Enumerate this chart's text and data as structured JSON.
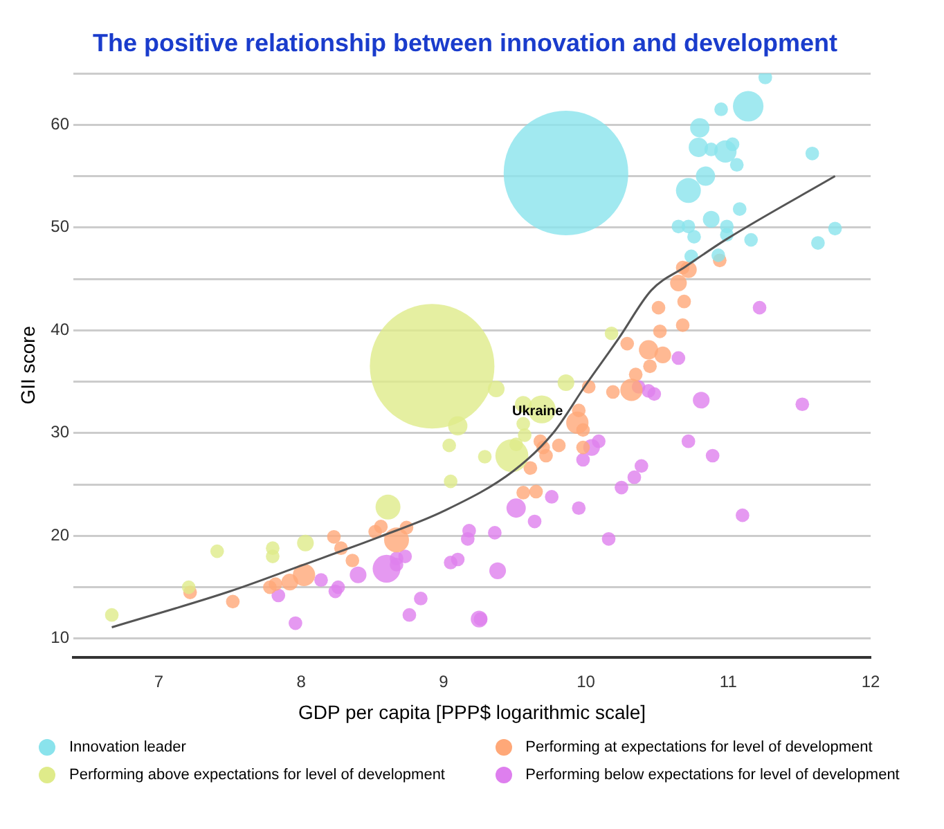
{
  "chart_data": {
    "type": "bubble",
    "title": "The positive relationship between innovation and development",
    "xlabel": "GDP per capita [PPP$ logarithmic scale]",
    "ylabel": "GII score",
    "xlim": [
      6.4,
      12
    ],
    "xticks": [
      7,
      8,
      9,
      10,
      11,
      12
    ],
    "ylim": [
      8.2,
      65
    ],
    "yticks": [
      10,
      {
        "value": 15,
        "label": null
      },
      20,
      {
        "value": 25,
        "label": null
      },
      30,
      {
        "value": 35,
        "label": null
      },
      40,
      {
        "value": 45,
        "label": null
      },
      50,
      {
        "value": 55,
        "label": null
      },
      60,
      {
        "value": 65,
        "label": null
      }
    ],
    "grid": "y",
    "legend": "bottom",
    "marker": "circle",
    "annotations": [
      {
        "text": "Ukraine",
        "x": 9.56,
        "y": 30.9
      }
    ],
    "series": [
      {
        "name": "Innovation leader",
        "color": "#8ae3ec",
        "x": [
          11.26,
          11.14,
          10.95,
          10.8,
          10.79,
          10.88,
          10.98,
          11.03,
          11.06,
          11.59,
          10.84,
          10.72,
          11.08,
          10.88,
          10.65,
          10.72,
          10.76,
          10.99,
          10.99,
          11.16,
          11.63,
          11.75,
          10.74,
          10.93,
          9.86
        ],
        "values": [
          64.6,
          61.8,
          61.5,
          59.7,
          57.8,
          57.6,
          57.4,
          58.1,
          56.1,
          57.2,
          55,
          53.6,
          51.8,
          50.8,
          50.1,
          50.1,
          49.1,
          50.1,
          49.3,
          48.8,
          48.5,
          49.9,
          47.2,
          47.3,
          55.3
        ],
        "sizes": [
          0.012,
          0.06,
          0.012,
          0.024,
          0.024,
          0.012,
          0.032,
          0.012,
          0.012,
          0.012,
          0.024,
          0.04,
          0.012,
          0.018,
          0.012,
          0.012,
          0.012,
          0.012,
          0.012,
          0.012,
          0.012,
          0.012,
          0.012,
          0.012,
          1
        ]
      },
      {
        "name": "Performing above expectations for level of development",
        "color": "#dfeb8a",
        "x": [
          8.92,
          10.18,
          9.86,
          9.37,
          9.56,
          9.57,
          9.69,
          9.56,
          9.51,
          9.48,
          9.29,
          9.1,
          9.04,
          9.05,
          8.61,
          8.03,
          7.41,
          7.8,
          7.8,
          7.21,
          6.67
        ],
        "values": [
          36.5,
          39.7,
          34.9,
          34.3,
          30.9,
          29.8,
          32.3,
          32.8,
          28.9,
          27.8,
          27.7,
          30.7,
          28.8,
          25.3,
          22.8,
          19.3,
          18.5,
          18.8,
          18,
          15,
          12.3
        ],
        "sizes": [
          1,
          0.012,
          0.018,
          0.018,
          0.012,
          0.012,
          0.05,
          0.018,
          0.012,
          0.07,
          0.012,
          0.024,
          0.012,
          0.012,
          0.04,
          0.018,
          0.012,
          0.012,
          0.012,
          0.012,
          0.012
        ]
      },
      {
        "name": "Performing at expectations for level of development",
        "color": "#ffa878",
        "x": [
          10.68,
          10.72,
          10.65,
          10.69,
          10.51,
          10.68,
          10.52,
          10.29,
          10.44,
          10.54,
          10.45,
          10.94,
          10.35,
          10.02,
          10.19,
          10.32,
          9.95,
          9.94,
          9.98,
          9.68,
          9.7,
          9.81,
          9.72,
          9.61,
          9.98,
          9.56,
          9.65,
          8.74,
          8.67,
          8.52,
          8.56,
          8.23,
          8.28,
          8.36,
          8.02,
          7.92,
          7.82,
          7.78,
          7.52,
          7.22
        ],
        "values": [
          46.1,
          45.9,
          44.6,
          42.8,
          42.2,
          40.5,
          39.9,
          38.7,
          38.1,
          37.6,
          36.5,
          46.8,
          35.7,
          34.5,
          34,
          34.2,
          32.2,
          31,
          30.3,
          29.2,
          28.6,
          28.8,
          27.8,
          26.6,
          28.6,
          24.2,
          24.3,
          20.8,
          19.6,
          20.4,
          20.9,
          19.9,
          18.8,
          17.6,
          16.2,
          15.5,
          15.3,
          15,
          13.6,
          14.5
        ],
        "sizes": [
          0.012,
          0.018,
          0.018,
          0.012,
          0.012,
          0.012,
          0.012,
          0.012,
          0.024,
          0.018,
          0.012,
          0.012,
          0.012,
          0.012,
          0.012,
          0.032,
          0.012,
          0.032,
          0.012,
          0.012,
          0.012,
          0.012,
          0.012,
          0.012,
          0.012,
          0.012,
          0.012,
          0.012,
          0.04,
          0.012,
          0.012,
          0.012,
          0.012,
          0.012,
          0.032,
          0.018,
          0.012,
          0.012,
          0.012,
          0.012
        ]
      },
      {
        "name": "Performing below expectations for level of development",
        "color": "#de7fee",
        "x": [
          11.22,
          10.65,
          10.37,
          10.44,
          10.48,
          10.81,
          11.52,
          10.09,
          10.04,
          9.98,
          10.72,
          10.89,
          10.39,
          10.34,
          10.25,
          9.76,
          9.51,
          9.95,
          9.64,
          11.1,
          9.36,
          10.16,
          9.38,
          9.26,
          9.18,
          9.17,
          9.1,
          9.05,
          8.73,
          8.67,
          8.6,
          8.67,
          8.4,
          8.14,
          8.26,
          8.24,
          7.84,
          8.84,
          8.76,
          7.96,
          9.25
        ],
        "values": [
          42.2,
          37.3,
          34.5,
          34.1,
          33.8,
          33.2,
          32.8,
          29.2,
          28.6,
          27.4,
          29.2,
          27.8,
          26.8,
          25.7,
          24.7,
          23.8,
          22.7,
          22.7,
          21.4,
          22,
          20.3,
          19.7,
          16.6,
          11.9,
          20.5,
          19.7,
          17.7,
          17.4,
          18,
          17.8,
          16.8,
          17.2,
          16.2,
          15.7,
          15,
          14.6,
          14.2,
          13.9,
          12.3,
          11.5,
          11.9
        ],
        "sizes": [
          0.012,
          0.012,
          0.012,
          0.012,
          0.012,
          0.018,
          0.012,
          0.012,
          0.018,
          0.012,
          0.012,
          0.012,
          0.012,
          0.012,
          0.012,
          0.012,
          0.024,
          0.012,
          0.012,
          0.012,
          0.012,
          0.012,
          0.018,
          0.012,
          0.012,
          0.012,
          0.012,
          0.012,
          0.012,
          0.012,
          0.05,
          0.012,
          0.018,
          0.012,
          0.012,
          0.012,
          0.012,
          0.012,
          0.012,
          0.012,
          0.018
        ]
      },
      {
        "type": "line",
        "color": "#555555",
        "marker": "none",
        "x": [
          6.67,
          7.5,
          8,
          8.55,
          9,
          9.49,
          9.77,
          10,
          10.23,
          10.46,
          10.7,
          10.98,
          11.75
        ],
        "values": [
          11.1,
          14.6,
          17.1,
          19.9,
          22.4,
          26.3,
          30,
          34.7,
          39.2,
          43.9,
          46.2,
          48.8,
          55
        ]
      }
    ]
  }
}
